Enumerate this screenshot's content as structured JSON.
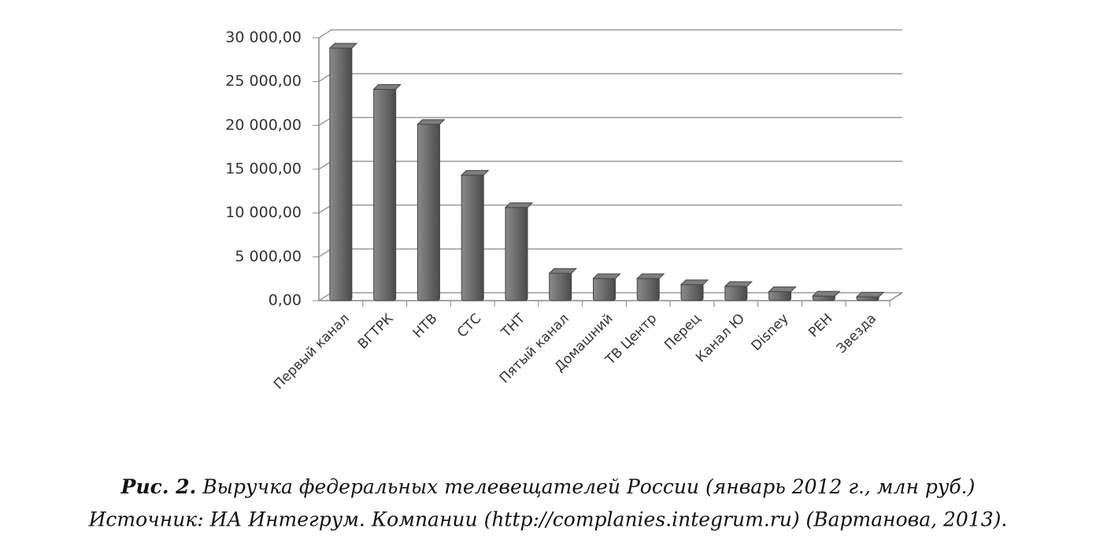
{
  "chart_data": {
    "type": "bar",
    "categories": [
      "Первый канал",
      "ВГТРК",
      "НТВ",
      "СТС",
      "ТНТ",
      "Пятый канал",
      "Домашний",
      "ТВ Центр",
      "Перец",
      "Канал Ю",
      "Disney",
      "РЕН",
      "Звезда"
    ],
    "values": [
      29000,
      24300,
      20300,
      14500,
      10800,
      3300,
      2700,
      2700,
      2000,
      1800,
      1200,
      700,
      600
    ],
    "color": "#6b6b6b",
    "ylim": [
      0,
      30000
    ],
    "yticks": [
      {
        "value": 0,
        "label": "0,00"
      },
      {
        "value": 5000,
        "label": "5 000,00"
      },
      {
        "value": 10000,
        "label": "10 000,00"
      },
      {
        "value": 15000,
        "label": "15 000,00"
      },
      {
        "value": 20000,
        "label": "20 000,00"
      },
      {
        "value": 25000,
        "label": "25 000,00"
      },
      {
        "value": 30000,
        "label": "30 000,00"
      }
    ],
    "grid": true
  },
  "caption": {
    "figure": "Рис. 2.",
    "title": "Выручка федеральных телевещателей России (январь 2012 г., млн руб.)",
    "source": "Источник: ИА Интегрум. Компании (http://complanies.integrum.ru) (Вартанова, 2013)."
  }
}
